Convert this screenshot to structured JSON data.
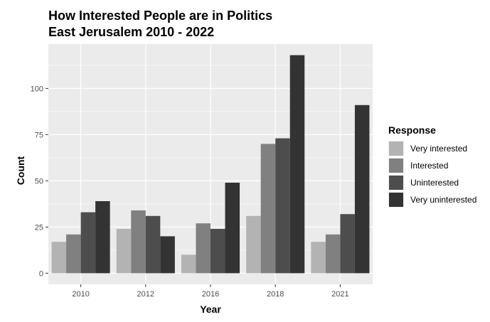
{
  "chart_data": {
    "type": "bar",
    "title_line1": "How Interested People are in Politics",
    "title_line2": "East Jerusalem 2010 - 2022",
    "xlabel": "Year",
    "ylabel": "Count",
    "categories": [
      "2010",
      "2012",
      "2016",
      "2018",
      "2021"
    ],
    "yticks": [
      0,
      25,
      50,
      75,
      100
    ],
    "ylim": [
      -6,
      124
    ],
    "grid": true,
    "legend_title": "Response",
    "legend_position": "right",
    "panel_background": "#ebebeb",
    "series": [
      {
        "name": "Very interested",
        "color": "#b3b3b3",
        "values": [
          17,
          24,
          10,
          31,
          17
        ]
      },
      {
        "name": "Interested",
        "color": "#808080",
        "values": [
          21,
          34,
          27,
          70,
          21
        ]
      },
      {
        "name": "Uninterested",
        "color": "#4d4d4d",
        "values": [
          33,
          31,
          24,
          73,
          32
        ]
      },
      {
        "name": "Very uninterested",
        "color": "#333333",
        "values": [
          39,
          20,
          49,
          118,
          91
        ]
      }
    ]
  }
}
